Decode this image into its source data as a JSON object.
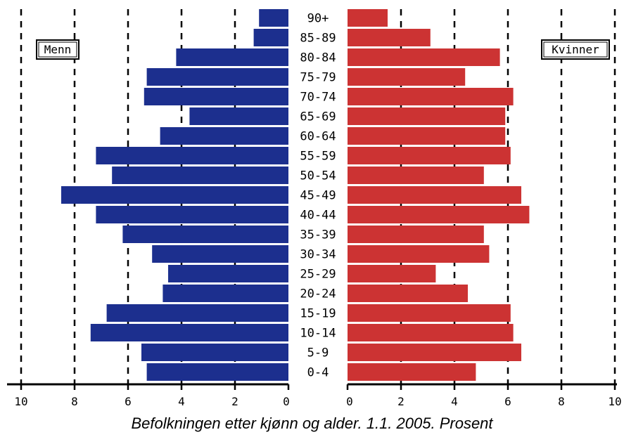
{
  "caption": "Befolkningen etter kjønn og alder. 1.1. 2005. Prosent",
  "chart_data": {
    "type": "bar",
    "orientation": "horizontal",
    "layout": "population-pyramid",
    "categories": [
      "0-4",
      "5-9",
      "10-14",
      "15-19",
      "20-24",
      "25-29",
      "30-34",
      "35-39",
      "40-44",
      "45-49",
      "50-54",
      "55-59",
      "60-64",
      "65-69",
      "70-74",
      "75-79",
      "80-84",
      "85-89",
      "90+"
    ],
    "series": [
      {
        "name": "Menn",
        "color": "#1c2f8e",
        "values": [
          5.3,
          5.5,
          7.4,
          6.8,
          4.7,
          4.5,
          5.1,
          6.2,
          7.2,
          8.5,
          6.6,
          7.2,
          4.8,
          3.7,
          5.4,
          5.3,
          4.2,
          1.3,
          1.1
        ]
      },
      {
        "name": "Kvinner",
        "color": "#cc3333",
        "values": [
          4.8,
          6.5,
          6.2,
          6.1,
          4.5,
          3.3,
          5.3,
          5.1,
          6.8,
          6.5,
          5.1,
          6.1,
          5.9,
          5.9,
          6.2,
          4.4,
          5.7,
          3.1,
          1.5
        ]
      }
    ],
    "xticks": [
      "10",
      "8",
      "6",
      "4",
      "2",
      "0"
    ],
    "xlim": [
      0,
      10
    ],
    "grid": true,
    "legend": [
      "Menn",
      "Kvinner"
    ],
    "legend_position": "top-left (Menn), top-right (Kvinner)"
  }
}
